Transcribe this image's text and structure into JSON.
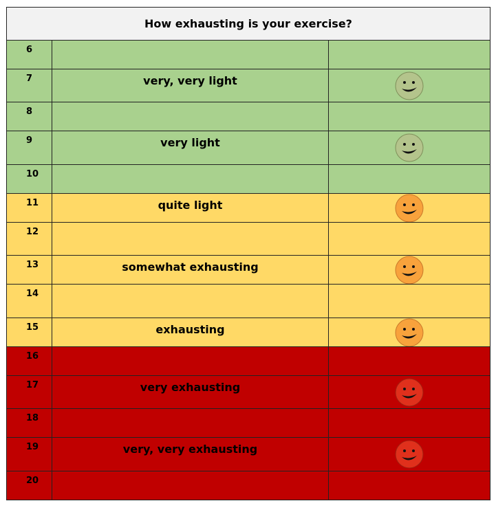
{
  "title": "How exhausting is your exercise?",
  "zones": [
    {
      "color": "#a9d18e",
      "rows": [
        {
          "number": 6
        },
        {
          "number": 7,
          "label": "very, very light"
        },
        {
          "number": 8
        },
        {
          "number": 9,
          "label": "very light"
        },
        {
          "number": 10
        }
      ]
    },
    {
      "color": "#ffd966",
      "rows": [
        {
          "number": 11,
          "label": "quite light"
        },
        {
          "number": 12
        },
        {
          "number": 13,
          "label": "somewhat exhausting"
        },
        {
          "number": 14
        },
        {
          "number": 15,
          "label": "exhausting"
        }
      ]
    },
    {
      "color": "#c00000",
      "rows": [
        {
          "number": 16
        },
        {
          "number": 17,
          "label": "very exhausting"
        },
        {
          "number": 18
        },
        {
          "number": 19,
          "label": "very, very exhausting"
        },
        {
          "number": 20
        }
      ]
    }
  ]
}
